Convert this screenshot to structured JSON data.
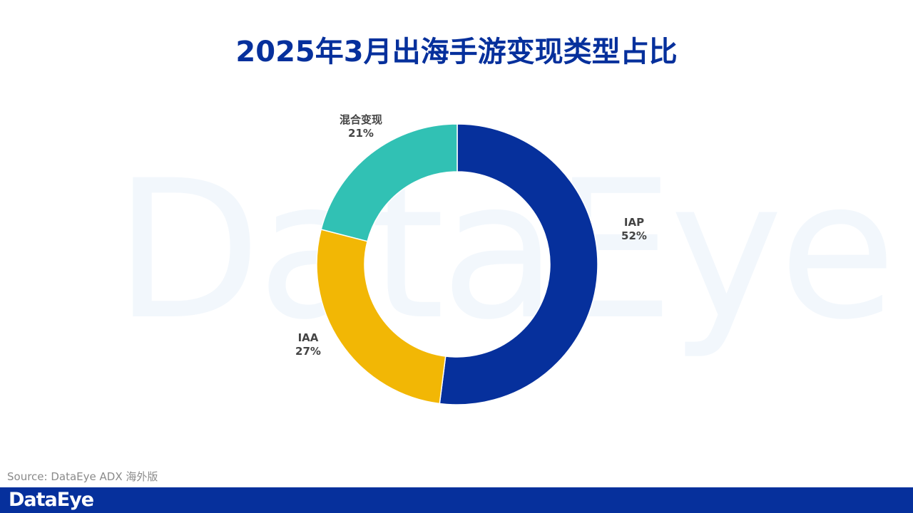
{
  "title": "2025年3月出海手游变现类型占比",
  "watermark": "DataEye",
  "source": "Source: DataEye ADX 海外版",
  "footer": {
    "logo": "DataEye"
  },
  "colors": {
    "IAP": "#06309c",
    "IAA": "#f2b705",
    "hybrid": "#31c1b4",
    "title": "#06309c",
    "footer": "#06309c"
  },
  "labels": {
    "iap": {
      "name": "IAP",
      "value": "52%"
    },
    "iaa": {
      "name": "IAA",
      "value": "27%"
    },
    "hybrid": {
      "name": "混合变现",
      "value": "21%"
    }
  },
  "chart_data": {
    "type": "pie",
    "subtype": "donut",
    "title": "2025年3月出海手游变现类型占比",
    "categories": [
      "IAP",
      "IAA",
      "混合变现"
    ],
    "values": [
      52,
      27,
      21
    ],
    "unit": "%",
    "colors": [
      "#06309c",
      "#f2b705",
      "#31c1b4"
    ],
    "start_angle": "12 o'clock, clockwise",
    "legend": "none (data labels outside slices)"
  }
}
